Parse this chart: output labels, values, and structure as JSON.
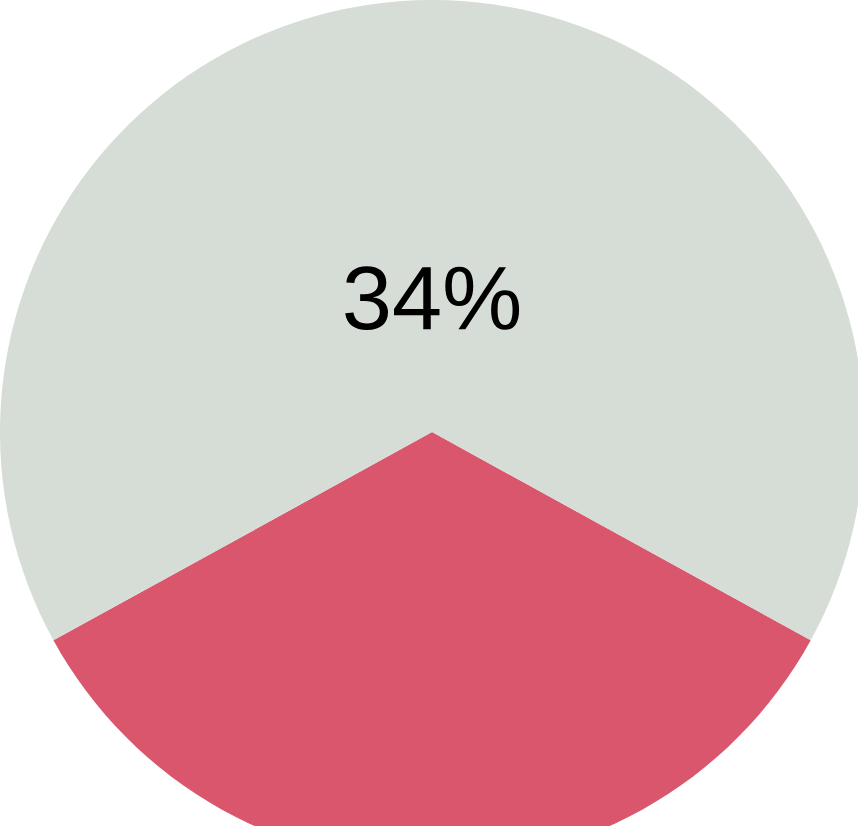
{
  "chart_data": {
    "type": "pie",
    "categories": [
      null,
      null
    ],
    "values": [
      34,
      66
    ],
    "colors": [
      "#d9566c",
      "#d6dcd6"
    ],
    "annotations": [
      "34%"
    ]
  }
}
